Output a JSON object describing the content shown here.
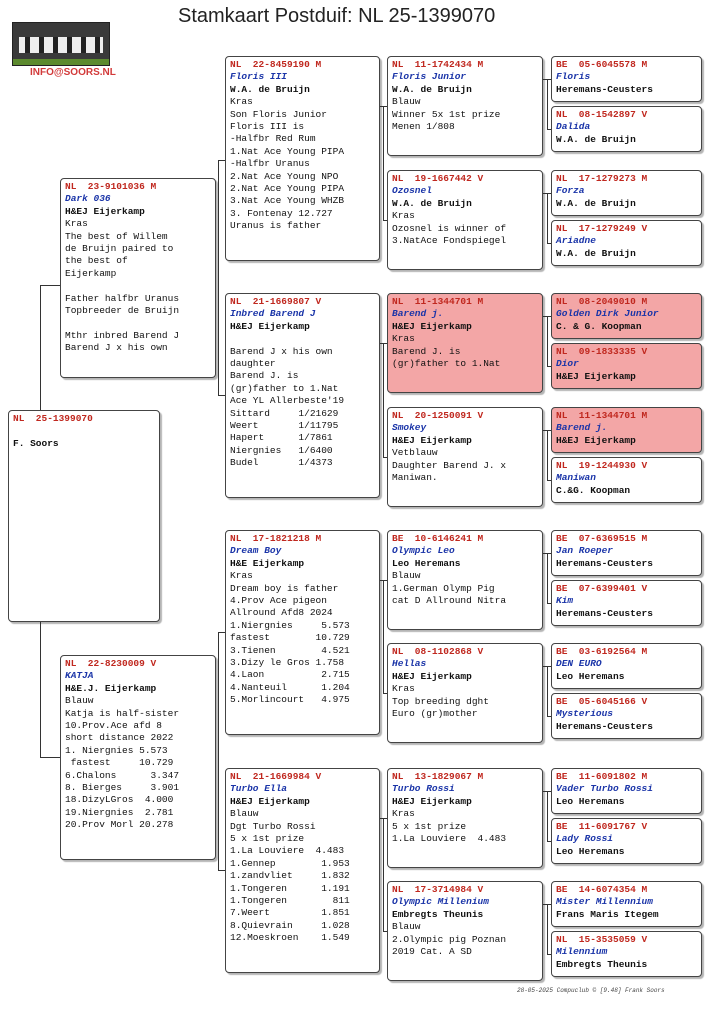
{
  "title": "Stamkaart Postduif: NL  25-1399070",
  "email": "INFO@SOORS.NL",
  "footer": "28-05-2025   Compuclub © [9.48]  Frank Soors",
  "pigeons": {
    "subject": {
      "ring": "NL  25-1399070",
      "name": "",
      "breeder": "F. Soors",
      "lines": []
    },
    "sire": {
      "ring": "NL  23-9101036 M",
      "name": "Dark 036",
      "breeder": "H&EJ Eijerkamp",
      "lines": [
        "Kras",
        "The best of Willem",
        "de Bruijn paired to",
        "the best of",
        "Eijerkamp",
        "",
        "Father halfbr Uranus",
        "Topbreeder de Bruijn",
        "",
        "Mthr inbred Barend J",
        "Barend J x his own"
      ]
    },
    "dam": {
      "ring": "NL  22-8230009 V",
      "name": "KATJA",
      "breeder": "H&E.J. Eijerkamp",
      "lines": [
        "Blauw",
        "Katja is half-sister",
        "10.Prov.Ace afd 8",
        "short distance 2022",
        "1. Niergnies 5.573",
        " fastest     10.729",
        "6.Chalons      3.347",
        "8. Bierges     3.901",
        "18.DizyLGros  4.000",
        "19.Niergnies  2.781",
        "20.Prov Morl 20.278"
      ]
    },
    "ss": {
      "ring": "NL  22-8459190 M",
      "name": "Floris III",
      "breeder": "W.A. de Bruijn",
      "lines": [
        "Kras",
        "Son Floris Junior",
        "Floris III is",
        "-Halfbr Red Rum",
        "1.Nat Ace Young PIPA",
        "-Halfbr Uranus",
        "2.Nat Ace Young NPO",
        "2.Nat Ace Young PIPA",
        "3.Nat Ace Young WHZB",
        "3. Fontenay 12.727",
        "Uranus is father"
      ]
    },
    "sd": {
      "ring": "NL  21-1669807 V",
      "name": "Inbred Barend J",
      "breeder": "H&EJ Eijerkamp",
      "lines": [
        "",
        "Barend J x his own",
        "daughter",
        "Barend J. is",
        "(gr)father to 1.Nat",
        "Ace YL Allerbeste'19",
        "Sittard     1/21629",
        "Weert       1/11795",
        "Hapert      1/7861",
        "Niergnies   1/6400",
        "Budel       1/4373"
      ]
    },
    "ds": {
      "ring": "NL  17-1821218 M",
      "name": "Dream Boy",
      "breeder": "H&E Eijerkamp",
      "lines": [
        "Kras",
        "Dream boy is father",
        "4.Prov Ace pigeon",
        "Allround Afd8 2024",
        "1.Niergnies     5.573",
        "fastest        10.729",
        "3.Tienen        4.521",
        "3.Dizy le Gros 1.758",
        "4.Laon          2.715",
        "4.Nanteuil      1.204",
        "5.Morlincourt   4.975"
      ]
    },
    "dd": {
      "ring": "NL  21-1669984 V",
      "name": "Turbo Ella",
      "breeder": "H&EJ Eijerkamp",
      "lines": [
        "Blauw",
        "Dgt Turbo Rossi",
        "5 x 1st prize",
        "1.La Louviere  4.483",
        "1.Gennep        1.953",
        "1.zandvliet     1.832",
        "1.Tongeren      1.191",
        "1.Tongeren        811",
        "7.Weert         1.851",
        "8.Quievrain     1.028",
        "12.Moeskroen    1.549"
      ]
    },
    "sss": {
      "ring": "NL  11-1742434 M",
      "name": "Floris Junior",
      "breeder": "W.A. de Bruijn",
      "lines": [
        "Blauw",
        "Winner 5x 1st prize",
        "Menen 1/808"
      ]
    },
    "ssd": {
      "ring": "NL  19-1667442 V",
      "name": "Ozosnel",
      "breeder": "W.A. de Bruijn",
      "lines": [
        "Kras",
        "Ozosnel is winner of",
        "3.NatAce Fondspiegel"
      ]
    },
    "sds": {
      "ring": "NL  11-1344701 M",
      "name": "Barend j.",
      "breeder": "H&EJ Eijerkamp",
      "lines": [
        "Kras",
        "Barend J. is",
        "(gr)father to 1.Nat"
      ]
    },
    "sdd": {
      "ring": "NL  20-1250091 V",
      "name": "Smokey",
      "breeder": "H&EJ Eijerkamp",
      "lines": [
        "Vetblauw",
        "Daughter Barend J. x",
        "Maniwan."
      ]
    },
    "dss": {
      "ring": "BE  10-6146241 M",
      "name": "Olympic Leo",
      "breeder": "Leo Heremans",
      "lines": [
        "Blauw",
        "1.German Olymp Pig",
        "cat D Allround Nitra"
      ]
    },
    "dsd": {
      "ring": "NL  08-1102868 V",
      "name": "Hellas",
      "breeder": "H&EJ Eijerkamp",
      "lines": [
        "Kras",
        "Top breeding dght",
        "Euro (gr)mother"
      ]
    },
    "dds": {
      "ring": "NL  13-1829067 M",
      "name": "Turbo Rossi",
      "breeder": "H&EJ Eijerkamp",
      "lines": [
        "Kras",
        "5 x 1st prize",
        "1.La Louviere  4.483"
      ]
    },
    "ddd": {
      "ring": "NL  17-3714984 V",
      "name": "Olympic Millenium",
      "breeder": "Embregts Theunis",
      "lines": [
        "Blauw",
        "2.Olympic pig Poznan",
        "2019 Cat. A SD"
      ]
    },
    "g1": {
      "ring": "BE  05-6045578 M",
      "name": "Floris",
      "breeder": "Heremans-Ceusters"
    },
    "g2": {
      "ring": "NL  08-1542897 V",
      "name": "Dalida",
      "breeder": "W.A. de Bruijn"
    },
    "g3": {
      "ring": "NL  17-1279273 M",
      "name": "Forza",
      "breeder": "W.A. de Bruijn"
    },
    "g4": {
      "ring": "NL  17-1279249 V",
      "name": "Ariadne",
      "breeder": "W.A. de Bruijn"
    },
    "g5": {
      "ring": "NL  08-2049010 M",
      "name": "Golden Dirk Junior",
      "breeder": "C. & G. Koopman"
    },
    "g6": {
      "ring": "NL  09-1833335 V",
      "name": "Dior",
      "breeder": "H&EJ Eijerkamp"
    },
    "g7": {
      "ring": "NL  11-1344701 M",
      "name": "Barend j.",
      "breeder": "H&EJ Eijerkamp"
    },
    "g8": {
      "ring": "NL  19-1244930 V",
      "name": "Maniwan",
      "breeder": "C.&G. Koopman"
    },
    "g9": {
      "ring": "BE  07-6369515 M",
      "name": "Jan Roeper",
      "breeder": "Heremans-Ceusters"
    },
    "g10": {
      "ring": "BE  07-6399401 V",
      "name": "Kim",
      "breeder": "Heremans-Ceusters"
    },
    "g11": {
      "ring": "BE  03-6192564 M",
      "name": "DEN EURO",
      "breeder": "Leo Heremans"
    },
    "g12": {
      "ring": "BE  05-6045166 V",
      "name": "Mysterious",
      "breeder": "Heremans-Ceusters"
    },
    "g13": {
      "ring": "BE  11-6091802 M",
      "name": "Vader Turbo Rossi",
      "breeder": "Leo Heremans"
    },
    "g14": {
      "ring": "BE  11-6091767 V",
      "name": "Lady Rossi",
      "breeder": "Leo Heremans"
    },
    "g15": {
      "ring": "BE  14-6074354 M",
      "name": "Mister Millennium",
      "breeder": "Frans Maris Itegem"
    },
    "g16": {
      "ring": "NL  15-3535059 V",
      "name": "Milennium",
      "breeder": "Embregts Theunis"
    }
  }
}
